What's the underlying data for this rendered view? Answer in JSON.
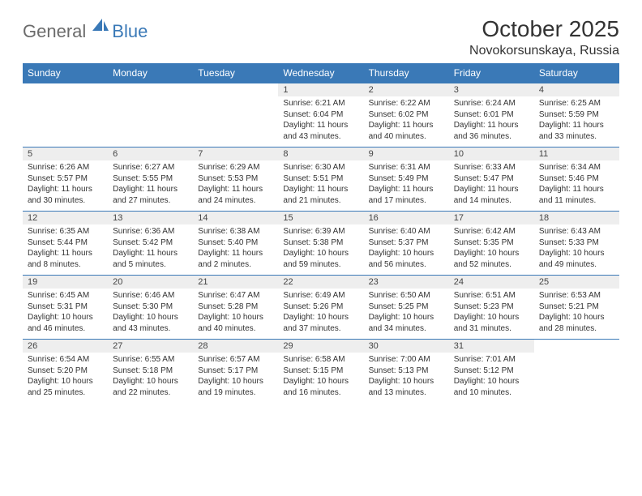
{
  "logo": {
    "general": "General",
    "blue": "Blue"
  },
  "title": "October 2025",
  "location": "Novokorsunskaya, Russia",
  "colors": {
    "header_bg": "#3a79b7",
    "header_text": "#ffffff",
    "daynum_bg": "#eeeeee",
    "border": "#3a79b7",
    "text": "#333333",
    "logo_gray": "#6b6b6b",
    "logo_blue": "#3a79b7"
  },
  "weekdays": [
    "Sunday",
    "Monday",
    "Tuesday",
    "Wednesday",
    "Thursday",
    "Friday",
    "Saturday"
  ],
  "weeks": [
    [
      {
        "n": "",
        "sr": "",
        "ss": "",
        "dl": ""
      },
      {
        "n": "",
        "sr": "",
        "ss": "",
        "dl": ""
      },
      {
        "n": "",
        "sr": "",
        "ss": "",
        "dl": ""
      },
      {
        "n": "1",
        "sr": "6:21 AM",
        "ss": "6:04 PM",
        "dl": "11 hours and 43 minutes."
      },
      {
        "n": "2",
        "sr": "6:22 AM",
        "ss": "6:02 PM",
        "dl": "11 hours and 40 minutes."
      },
      {
        "n": "3",
        "sr": "6:24 AM",
        "ss": "6:01 PM",
        "dl": "11 hours and 36 minutes."
      },
      {
        "n": "4",
        "sr": "6:25 AM",
        "ss": "5:59 PM",
        "dl": "11 hours and 33 minutes."
      }
    ],
    [
      {
        "n": "5",
        "sr": "6:26 AM",
        "ss": "5:57 PM",
        "dl": "11 hours and 30 minutes."
      },
      {
        "n": "6",
        "sr": "6:27 AM",
        "ss": "5:55 PM",
        "dl": "11 hours and 27 minutes."
      },
      {
        "n": "7",
        "sr": "6:29 AM",
        "ss": "5:53 PM",
        "dl": "11 hours and 24 minutes."
      },
      {
        "n": "8",
        "sr": "6:30 AM",
        "ss": "5:51 PM",
        "dl": "11 hours and 21 minutes."
      },
      {
        "n": "9",
        "sr": "6:31 AM",
        "ss": "5:49 PM",
        "dl": "11 hours and 17 minutes."
      },
      {
        "n": "10",
        "sr": "6:33 AM",
        "ss": "5:47 PM",
        "dl": "11 hours and 14 minutes."
      },
      {
        "n": "11",
        "sr": "6:34 AM",
        "ss": "5:46 PM",
        "dl": "11 hours and 11 minutes."
      }
    ],
    [
      {
        "n": "12",
        "sr": "6:35 AM",
        "ss": "5:44 PM",
        "dl": "11 hours and 8 minutes."
      },
      {
        "n": "13",
        "sr": "6:36 AM",
        "ss": "5:42 PM",
        "dl": "11 hours and 5 minutes."
      },
      {
        "n": "14",
        "sr": "6:38 AM",
        "ss": "5:40 PM",
        "dl": "11 hours and 2 minutes."
      },
      {
        "n": "15",
        "sr": "6:39 AM",
        "ss": "5:38 PM",
        "dl": "10 hours and 59 minutes."
      },
      {
        "n": "16",
        "sr": "6:40 AM",
        "ss": "5:37 PM",
        "dl": "10 hours and 56 minutes."
      },
      {
        "n": "17",
        "sr": "6:42 AM",
        "ss": "5:35 PM",
        "dl": "10 hours and 52 minutes."
      },
      {
        "n": "18",
        "sr": "6:43 AM",
        "ss": "5:33 PM",
        "dl": "10 hours and 49 minutes."
      }
    ],
    [
      {
        "n": "19",
        "sr": "6:45 AM",
        "ss": "5:31 PM",
        "dl": "10 hours and 46 minutes."
      },
      {
        "n": "20",
        "sr": "6:46 AM",
        "ss": "5:30 PM",
        "dl": "10 hours and 43 minutes."
      },
      {
        "n": "21",
        "sr": "6:47 AM",
        "ss": "5:28 PM",
        "dl": "10 hours and 40 minutes."
      },
      {
        "n": "22",
        "sr": "6:49 AM",
        "ss": "5:26 PM",
        "dl": "10 hours and 37 minutes."
      },
      {
        "n": "23",
        "sr": "6:50 AM",
        "ss": "5:25 PM",
        "dl": "10 hours and 34 minutes."
      },
      {
        "n": "24",
        "sr": "6:51 AM",
        "ss": "5:23 PM",
        "dl": "10 hours and 31 minutes."
      },
      {
        "n": "25",
        "sr": "6:53 AM",
        "ss": "5:21 PM",
        "dl": "10 hours and 28 minutes."
      }
    ],
    [
      {
        "n": "26",
        "sr": "6:54 AM",
        "ss": "5:20 PM",
        "dl": "10 hours and 25 minutes."
      },
      {
        "n": "27",
        "sr": "6:55 AM",
        "ss": "5:18 PM",
        "dl": "10 hours and 22 minutes."
      },
      {
        "n": "28",
        "sr": "6:57 AM",
        "ss": "5:17 PM",
        "dl": "10 hours and 19 minutes."
      },
      {
        "n": "29",
        "sr": "6:58 AM",
        "ss": "5:15 PM",
        "dl": "10 hours and 16 minutes."
      },
      {
        "n": "30",
        "sr": "7:00 AM",
        "ss": "5:13 PM",
        "dl": "10 hours and 13 minutes."
      },
      {
        "n": "31",
        "sr": "7:01 AM",
        "ss": "5:12 PM",
        "dl": "10 hours and 10 minutes."
      },
      {
        "n": "",
        "sr": "",
        "ss": "",
        "dl": ""
      }
    ]
  ],
  "labels": {
    "sunrise": "Sunrise: ",
    "sunset": "Sunset: ",
    "daylight": "Daylight: "
  }
}
